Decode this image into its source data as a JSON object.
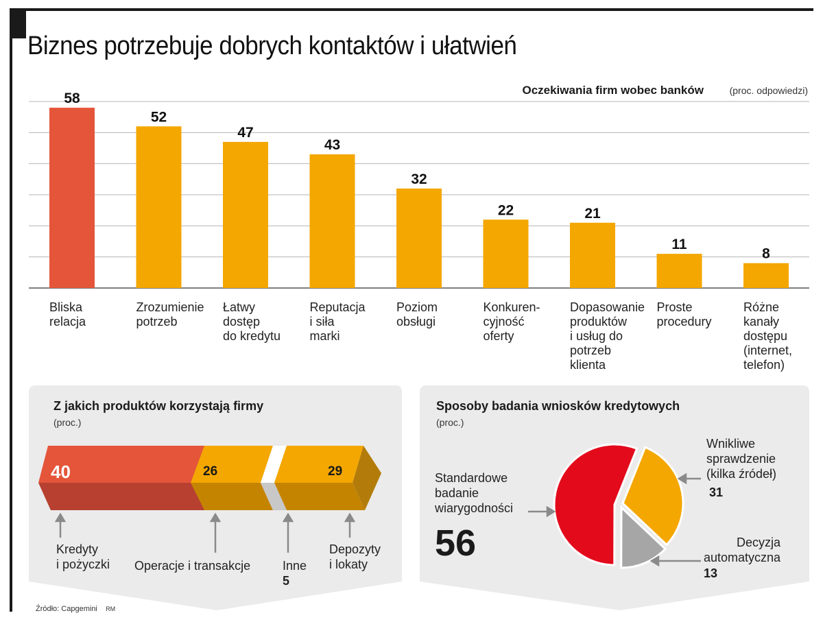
{
  "title": "Biznes potrzebuje dobrych kontaktów i ułatwień",
  "colors": {
    "highlight": "#e4553a",
    "bar": "#f4a700",
    "panel": "#ebebeb",
    "pie_red": "#e30a1c",
    "pie_gray": "#a6a6a6"
  },
  "chart_data": [
    {
      "type": "bar",
      "title": "Oczekiwania firm wobec banków",
      "unit": "(proc. odpowiedzi)",
      "categories": [
        "Bliska relacja",
        "Zrozumienie potrzeb",
        "Łatwy dostęp do kredytu",
        "Reputacja i siła marki",
        "Poziom obsługi",
        "Konkurencyjność oferty",
        "Dopasowanie produktów i usług do potrzeb klienta",
        "Proste procedury",
        "Różne kanały dostępu (internet, telefon)"
      ],
      "category_lines": [
        [
          "Bliska",
          "relacja"
        ],
        [
          "Zrozumienie",
          "potrzeb"
        ],
        [
          "Łatwy",
          "dostęp",
          "do kredytu"
        ],
        [
          "Reputacja",
          "i siła",
          "marki"
        ],
        [
          "Poziom",
          "obsługi"
        ],
        [
          "Konkuren-",
          "cyjność",
          "oferty"
        ],
        [
          "Dopasowanie",
          "produktów",
          "i usług do",
          "potrzeb",
          "klienta"
        ],
        [
          "Proste",
          "procedury"
        ],
        [
          "Różne",
          "kanały",
          "dostępu",
          "(internet,",
          "telefon)"
        ]
      ],
      "values": [
        58,
        52,
        47,
        43,
        32,
        22,
        21,
        11,
        8
      ],
      "highlight_index": 0,
      "ylim": [
        0,
        60
      ],
      "grid": true
    },
    {
      "type": "stacked-bar",
      "title": "Z jakich produktów korzystają firmy",
      "unit": "(proc.)",
      "segments": [
        {
          "label": "Kredyty i pożyczki",
          "value": 40,
          "color": "#e4553a"
        },
        {
          "label": "Operacje i transakcje",
          "value": 26,
          "color": "#f4a700"
        },
        {
          "label": "Inne",
          "value": 5,
          "color": "#ffffff"
        },
        {
          "label": "Depozyty i lokaty",
          "value": 29,
          "color": "#f4a700"
        }
      ]
    },
    {
      "type": "pie",
      "title": "Sposoby badania wniosków kredytowych",
      "unit": "(proc.)",
      "slices": [
        {
          "label": "Standardowe badanie wiarygodności",
          "value": 56,
          "color": "#e30a1c"
        },
        {
          "label": "Wnikliwe sprawdzenie (kilka źródeł)",
          "value": 31,
          "color": "#f4a700"
        },
        {
          "label": "Decyzja automatyczna",
          "value": 13,
          "color": "#a6a6a6"
        }
      ]
    }
  ],
  "labels": {
    "products": {
      "kredyty": [
        "Kredyty",
        "i pożyczki"
      ],
      "operacje": "Operacje i transakcje",
      "inne": "Inne",
      "depozyty": [
        "Depozyty",
        "i lokaty"
      ]
    },
    "methods": {
      "standard": [
        "Standardowe",
        "badanie",
        "wiarygodności"
      ],
      "wnikliwe": [
        "Wnikliwe",
        "sprawdzenie",
        "(kilka źródeł)"
      ],
      "automat": [
        "Decyzja",
        "automatyczna"
      ]
    }
  },
  "source": "Źródło: Capgemini",
  "author": "RM"
}
